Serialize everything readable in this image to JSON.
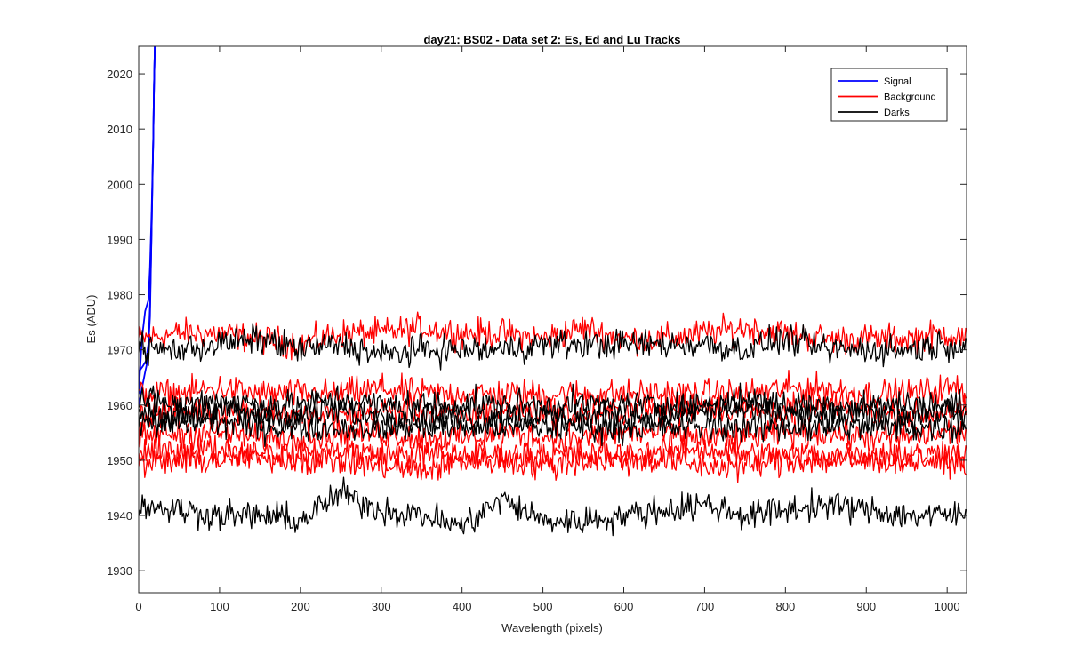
{
  "chart_data": {
    "type": "line",
    "title": "day21: BS02 - Data set 2: Es, Ed and Lu Tracks",
    "xlabel": "Wavelength (pixels)",
    "ylabel": "Es (ADU)",
    "xlim": [
      0,
      1024
    ],
    "ylim": [
      1926,
      2025
    ],
    "xticks": [
      0,
      100,
      200,
      300,
      400,
      500,
      600,
      700,
      800,
      900,
      1000
    ],
    "yticks": [
      1930,
      1940,
      1950,
      1960,
      1970,
      1980,
      1990,
      2000,
      2010,
      2020
    ],
    "grid": false,
    "legend": {
      "position": "top-right",
      "entries": [
        "Signal",
        "Background",
        "Darks"
      ]
    },
    "colors": {
      "Signal": "#0000ff",
      "Background": "#ff0000",
      "Darks": "#000000"
    },
    "series": [
      {
        "name": "Signal",
        "group": "Signal",
        "x": [
          0,
          4,
          8,
          12,
          14,
          16,
          18,
          19,
          20
        ],
        "y": [
          1962,
          1972,
          1977,
          1979,
          1985,
          1995,
          2008,
          2018,
          2025
        ]
      },
      {
        "name": "Signal",
        "group": "Signal",
        "x": [
          0,
          5,
          9,
          12,
          14,
          16,
          18,
          19,
          20
        ],
        "y": [
          1966,
          1967,
          1968,
          1971,
          1978,
          1992,
          2008,
          2018,
          2025
        ]
      },
      {
        "name": "Signal",
        "group": "Signal",
        "x": [
          0,
          4,
          8,
          11,
          14,
          16,
          18,
          19,
          20
        ],
        "y": [
          1960,
          1963,
          1966,
          1968,
          1976,
          1992,
          2008,
          2018,
          2025
        ]
      },
      {
        "name": "Background",
        "group": "Background",
        "x": [
          0,
          50,
          100,
          150,
          200,
          250,
          300,
          350,
          400,
          450,
          500,
          550,
          600,
          650,
          700,
          750,
          800,
          850,
          900,
          950,
          1000,
          1024
        ],
        "y": [
          1972,
          1973,
          1973,
          1972,
          1971,
          1973,
          1973,
          1974,
          1973,
          1973,
          1972,
          1974,
          1972,
          1972,
          1973,
          1974,
          1973,
          1972,
          1972,
          1972,
          1973,
          1972
        ]
      },
      {
        "name": "Background",
        "group": "Background",
        "x": [
          0,
          50,
          100,
          150,
          200,
          250,
          300,
          350,
          400,
          450,
          500,
          550,
          600,
          650,
          700,
          750,
          800,
          850,
          900,
          950,
          1000,
          1024
        ],
        "y": [
          1962,
          1962,
          1963,
          1962,
          1962,
          1962,
          1963,
          1962,
          1962,
          1962,
          1962,
          1962,
          1962,
          1962,
          1962,
          1962,
          1963,
          1963,
          1962,
          1962,
          1963,
          1963
        ]
      },
      {
        "name": "Background",
        "group": "Background",
        "x": [
          0,
          50,
          100,
          150,
          200,
          250,
          300,
          350,
          400,
          450,
          500,
          550,
          600,
          650,
          700,
          750,
          800,
          850,
          900,
          950,
          1000,
          1024
        ],
        "y": [
          1958,
          1959,
          1959,
          1959,
          1958,
          1958,
          1959,
          1959,
          1958,
          1959,
          1959,
          1958,
          1959,
          1959,
          1960,
          1959,
          1959,
          1960,
          1959,
          1958,
          1959,
          1959
        ]
      },
      {
        "name": "Background",
        "group": "Background",
        "x": [
          0,
          50,
          100,
          150,
          200,
          250,
          300,
          350,
          400,
          450,
          500,
          550,
          600,
          650,
          700,
          750,
          800,
          850,
          900,
          950,
          1000,
          1024
        ],
        "y": [
          1954,
          1955,
          1955,
          1954,
          1954,
          1955,
          1955,
          1954,
          1954,
          1955,
          1954,
          1954,
          1955,
          1955,
          1954,
          1954,
          1955,
          1955,
          1954,
          1954,
          1955,
          1955
        ]
      },
      {
        "name": "Background",
        "group": "Background",
        "x": [
          0,
          50,
          100,
          150,
          200,
          250,
          300,
          350,
          400,
          450,
          500,
          550,
          600,
          650,
          700,
          750,
          800,
          850,
          900,
          950,
          1000,
          1024
        ],
        "y": [
          1951,
          1952,
          1952,
          1951,
          1951,
          1952,
          1951,
          1951,
          1951,
          1951,
          1951,
          1951,
          1951,
          1952,
          1952,
          1951,
          1951,
          1951,
          1951,
          1951,
          1951,
          1951
        ]
      },
      {
        "name": "Background",
        "group": "Background",
        "x": [
          0,
          50,
          100,
          150,
          200,
          250,
          300,
          350,
          400,
          450,
          500,
          550,
          600,
          650,
          700,
          750,
          800,
          850,
          900,
          950,
          1000,
          1024
        ],
        "y": [
          1949,
          1950,
          1950,
          1951,
          1950,
          1950,
          1949,
          1948,
          1950,
          1950,
          1949,
          1950,
          1950,
          1950,
          1949,
          1949,
          1950,
          1950,
          1950,
          1950,
          1950,
          1950
        ]
      },
      {
        "name": "Darks",
        "group": "Darks",
        "x": [
          0,
          50,
          100,
          150,
          200,
          250,
          300,
          350,
          400,
          450,
          500,
          550,
          600,
          650,
          700,
          750,
          800,
          850,
          900,
          950,
          1000,
          1024
        ],
        "y": [
          1970,
          1970,
          1971,
          1972,
          1970,
          1971,
          1969,
          1970,
          1970,
          1970,
          1971,
          1971,
          1971,
          1971,
          1971,
          1970,
          1972,
          1970,
          1970,
          1970,
          1971,
          1971
        ]
      },
      {
        "name": "Darks",
        "group": "Darks",
        "x": [
          0,
          50,
          100,
          150,
          200,
          250,
          300,
          350,
          400,
          450,
          500,
          550,
          600,
          650,
          700,
          750,
          800,
          850,
          900,
          950,
          1000,
          1024
        ],
        "y": [
          1961,
          1960,
          1961,
          1960,
          1960,
          1961,
          1960,
          1960,
          1960,
          1960,
          1960,
          1960,
          1960,
          1960,
          1960,
          1961,
          1960,
          1960,
          1960,
          1960,
          1960,
          1960
        ]
      },
      {
        "name": "Darks",
        "group": "Darks",
        "x": [
          0,
          50,
          100,
          150,
          200,
          250,
          300,
          350,
          400,
          450,
          500,
          550,
          600,
          650,
          700,
          750,
          800,
          850,
          900,
          950,
          1000,
          1024
        ],
        "y": [
          1958,
          1958,
          1959,
          1958,
          1958,
          1959,
          1958,
          1958,
          1958,
          1958,
          1958,
          1958,
          1958,
          1958,
          1959,
          1959,
          1958,
          1958,
          1958,
          1958,
          1959,
          1958
        ]
      },
      {
        "name": "Darks",
        "group": "Darks",
        "x": [
          0,
          50,
          100,
          150,
          200,
          250,
          300,
          350,
          400,
          450,
          500,
          550,
          600,
          650,
          700,
          750,
          800,
          850,
          900,
          950,
          1000,
          1024
        ],
        "y": [
          1956,
          1957,
          1957,
          1956,
          1956,
          1956,
          1956,
          1956,
          1956,
          1956,
          1956,
          1956,
          1956,
          1956,
          1956,
          1956,
          1956,
          1956,
          1956,
          1956,
          1956,
          1956
        ]
      },
      {
        "name": "Darks",
        "group": "Darks",
        "x": [
          0,
          50,
          100,
          150,
          200,
          250,
          300,
          350,
          400,
          450,
          500,
          550,
          600,
          650,
          700,
          750,
          800,
          850,
          900,
          950,
          1000,
          1024
        ],
        "y": [
          1942,
          1941,
          1940,
          1940,
          1939,
          1944,
          1941,
          1940,
          1938,
          1943,
          1939,
          1939,
          1940,
          1941,
          1942,
          1940,
          1941,
          1942,
          1941,
          1940,
          1940,
          1940
        ]
      }
    ]
  }
}
